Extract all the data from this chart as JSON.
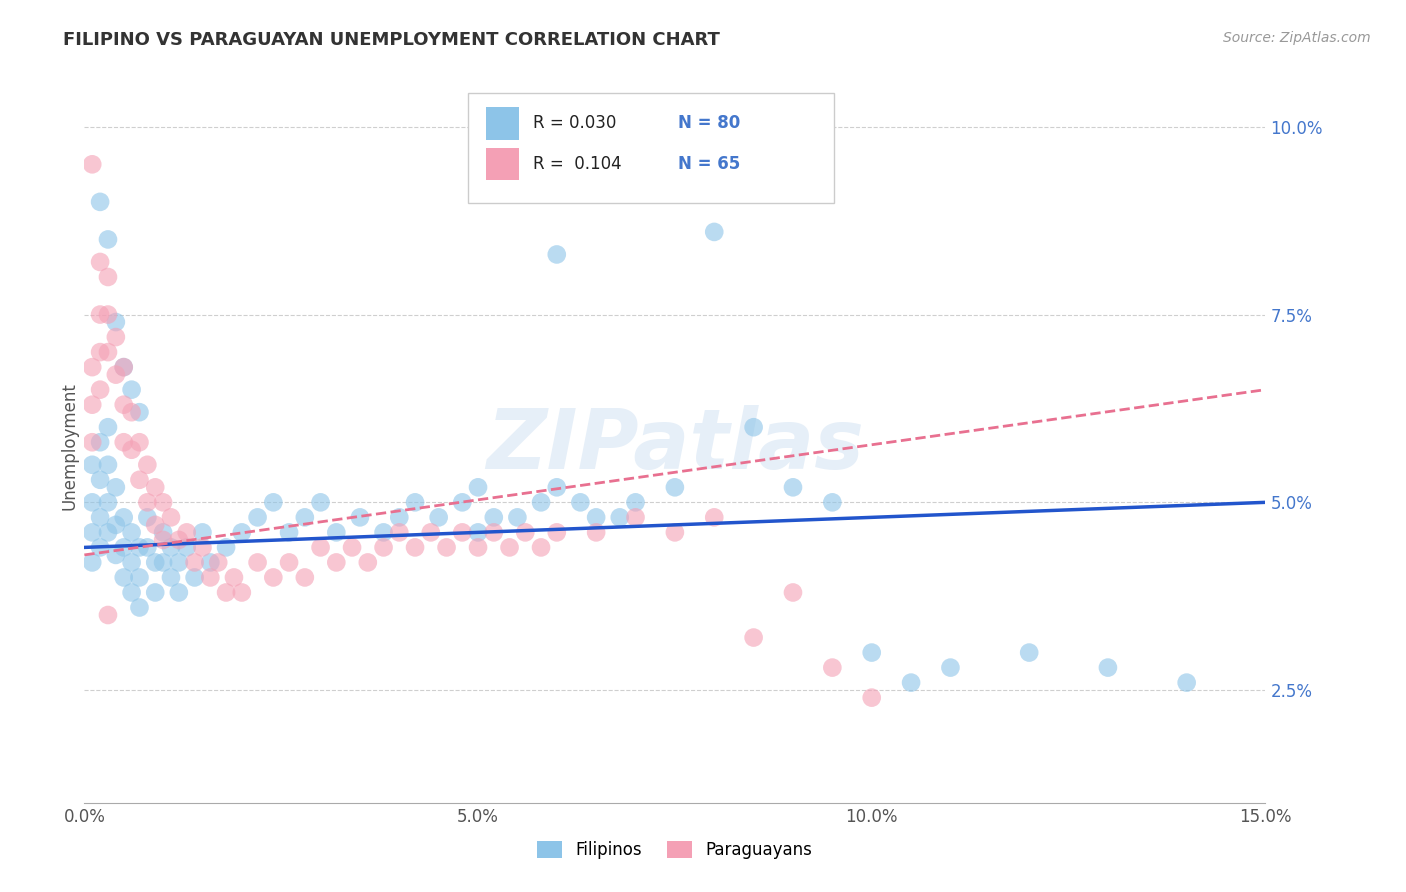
{
  "title": "FILIPINO VS PARAGUAYAN UNEMPLOYMENT CORRELATION CHART",
  "source": "Source: ZipAtlas.com",
  "ylabel": "Unemployment",
  "xlim": [
    0.0,
    0.15
  ],
  "ylim": [
    0.01,
    0.105
  ],
  "yticks": [
    0.025,
    0.05,
    0.075,
    0.1
  ],
  "ytick_labels": [
    "2.5%",
    "5.0%",
    "7.5%",
    "10.0%"
  ],
  "xticks": [
    0.0,
    0.05,
    0.1,
    0.15
  ],
  "xtick_labels": [
    "0.0%",
    "5.0%",
    "10.0%",
    "15.0%"
  ],
  "filipino_color": "#8DC4E8",
  "paraguayan_color": "#F4A0B5",
  "filipino_line_color": "#2255CC",
  "paraguayan_line_color": "#E87090",
  "filipino_R": 0.03,
  "filipino_N": 80,
  "paraguayan_R": 0.104,
  "paraguayan_N": 65,
  "watermark": "ZIPatlas",
  "legend_label_1": "Filipinos",
  "legend_label_2": "Paraguayans",
  "fil_trend_x0": 0.0,
  "fil_trend_y0": 0.044,
  "fil_trend_x1": 0.15,
  "fil_trend_y1": 0.05,
  "par_trend_x0": 0.0,
  "par_trend_y0": 0.043,
  "par_trend_x1": 0.15,
  "par_trend_y1": 0.065,
  "filipino_x": [
    0.001,
    0.001,
    0.001,
    0.001,
    0.002,
    0.002,
    0.002,
    0.002,
    0.003,
    0.003,
    0.003,
    0.003,
    0.004,
    0.004,
    0.004,
    0.005,
    0.005,
    0.005,
    0.006,
    0.006,
    0.006,
    0.007,
    0.007,
    0.007,
    0.008,
    0.008,
    0.009,
    0.009,
    0.01,
    0.01,
    0.011,
    0.011,
    0.012,
    0.012,
    0.013,
    0.014,
    0.015,
    0.016,
    0.018,
    0.02,
    0.022,
    0.024,
    0.026,
    0.028,
    0.03,
    0.032,
    0.035,
    0.038,
    0.04,
    0.042,
    0.045,
    0.048,
    0.05,
    0.052,
    0.055,
    0.058,
    0.06,
    0.063,
    0.065,
    0.068,
    0.07,
    0.075,
    0.08,
    0.085,
    0.09,
    0.095,
    0.1,
    0.105,
    0.11,
    0.12,
    0.13,
    0.14,
    0.05,
    0.06,
    0.002,
    0.003,
    0.004,
    0.005,
    0.006,
    0.007
  ],
  "filipino_y": [
    0.055,
    0.05,
    0.046,
    0.042,
    0.058,
    0.053,
    0.048,
    0.044,
    0.06,
    0.055,
    0.05,
    0.046,
    0.052,
    0.047,
    0.043,
    0.048,
    0.044,
    0.04,
    0.046,
    0.042,
    0.038,
    0.044,
    0.04,
    0.036,
    0.048,
    0.044,
    0.042,
    0.038,
    0.046,
    0.042,
    0.044,
    0.04,
    0.042,
    0.038,
    0.044,
    0.04,
    0.046,
    0.042,
    0.044,
    0.046,
    0.048,
    0.05,
    0.046,
    0.048,
    0.05,
    0.046,
    0.048,
    0.046,
    0.048,
    0.05,
    0.048,
    0.05,
    0.052,
    0.048,
    0.048,
    0.05,
    0.052,
    0.05,
    0.048,
    0.048,
    0.05,
    0.052,
    0.086,
    0.06,
    0.052,
    0.05,
    0.03,
    0.026,
    0.028,
    0.03,
    0.028,
    0.026,
    0.046,
    0.083,
    0.09,
    0.085,
    0.074,
    0.068,
    0.065,
    0.062
  ],
  "paraguayan_x": [
    0.001,
    0.001,
    0.001,
    0.002,
    0.002,
    0.002,
    0.003,
    0.003,
    0.003,
    0.004,
    0.004,
    0.005,
    0.005,
    0.005,
    0.006,
    0.006,
    0.007,
    0.007,
    0.008,
    0.008,
    0.009,
    0.009,
    0.01,
    0.01,
    0.011,
    0.012,
    0.013,
    0.014,
    0.015,
    0.016,
    0.017,
    0.018,
    0.019,
    0.02,
    0.022,
    0.024,
    0.026,
    0.028,
    0.03,
    0.032,
    0.034,
    0.036,
    0.038,
    0.04,
    0.042,
    0.044,
    0.046,
    0.048,
    0.05,
    0.052,
    0.054,
    0.056,
    0.058,
    0.06,
    0.065,
    0.07,
    0.075,
    0.08,
    0.085,
    0.09,
    0.095,
    0.1,
    0.001,
    0.002,
    0.003
  ],
  "paraguayan_y": [
    0.068,
    0.063,
    0.058,
    0.075,
    0.07,
    0.065,
    0.08,
    0.075,
    0.07,
    0.072,
    0.067,
    0.068,
    0.063,
    0.058,
    0.062,
    0.057,
    0.058,
    0.053,
    0.055,
    0.05,
    0.052,
    0.047,
    0.05,
    0.045,
    0.048,
    0.045,
    0.046,
    0.042,
    0.044,
    0.04,
    0.042,
    0.038,
    0.04,
    0.038,
    0.042,
    0.04,
    0.042,
    0.04,
    0.044,
    0.042,
    0.044,
    0.042,
    0.044,
    0.046,
    0.044,
    0.046,
    0.044,
    0.046,
    0.044,
    0.046,
    0.044,
    0.046,
    0.044,
    0.046,
    0.046,
    0.048,
    0.046,
    0.048,
    0.032,
    0.038,
    0.028,
    0.024,
    0.095,
    0.082,
    0.035
  ]
}
